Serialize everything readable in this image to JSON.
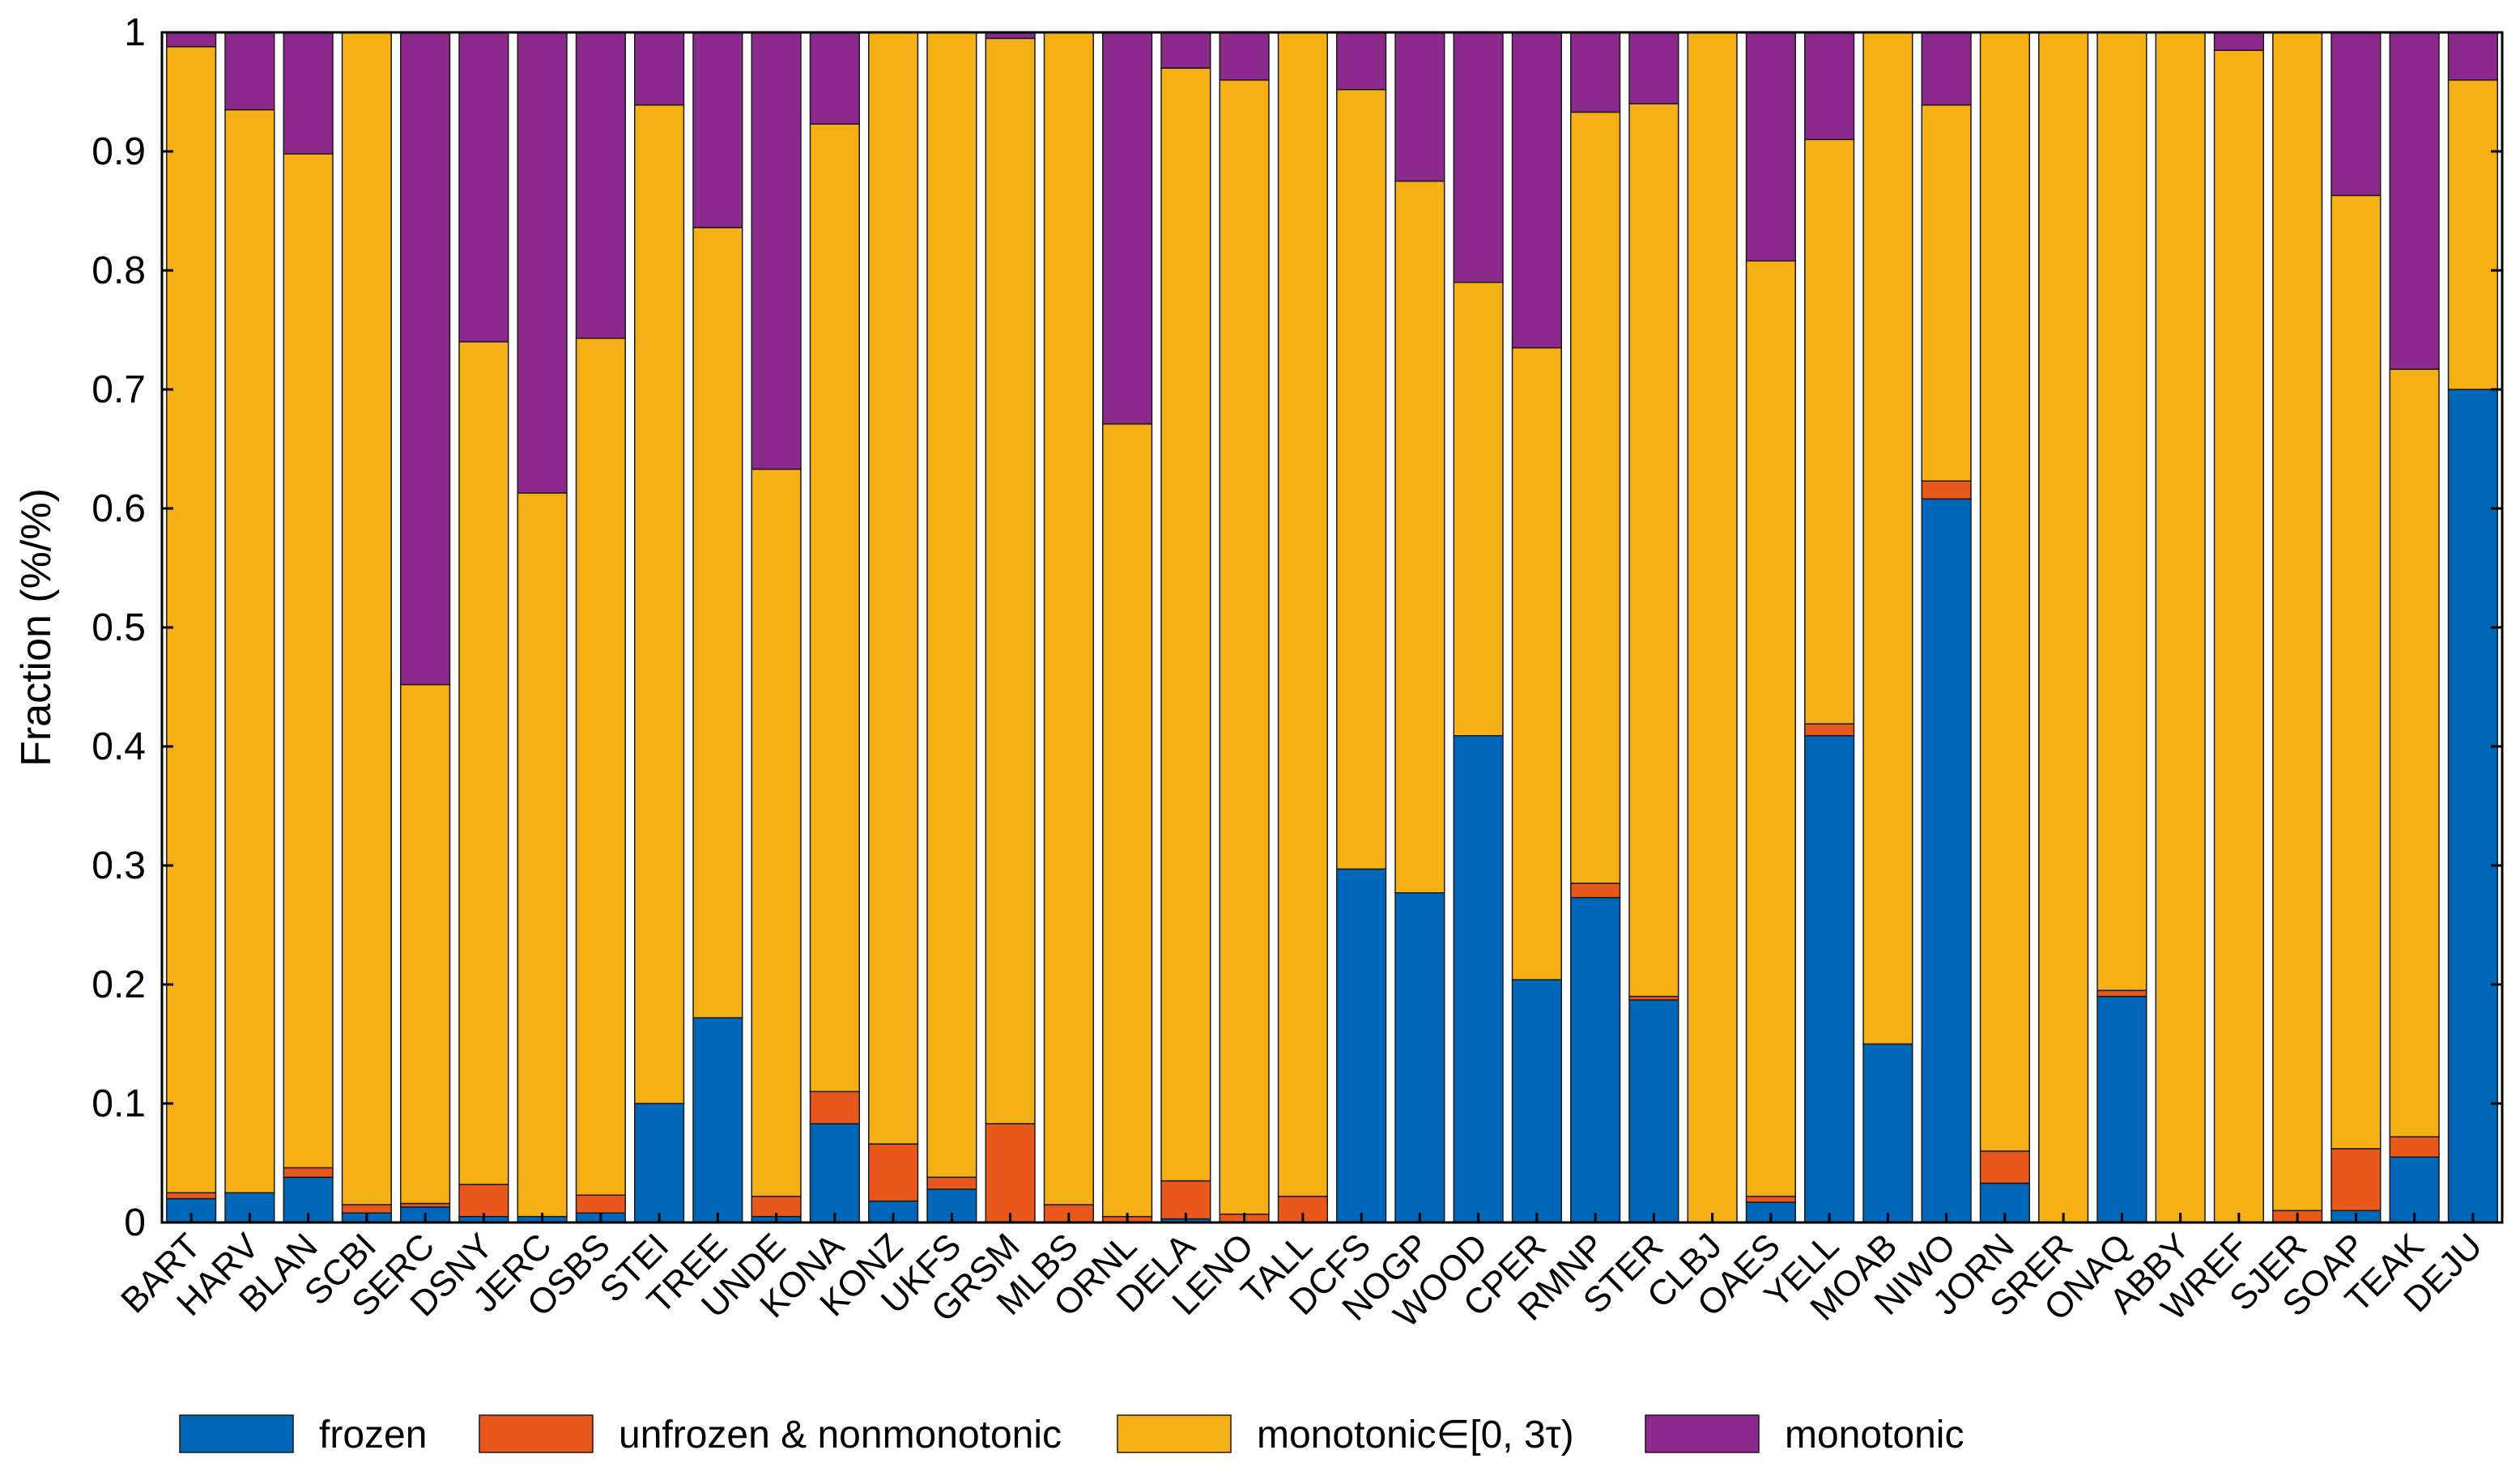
{
  "chart_data": {
    "type": "bar",
    "stacked": true,
    "title": "",
    "xlabel": "",
    "ylabel": "Fraction (%/%)",
    "ylim": [
      0,
      1
    ],
    "yticks": [
      0,
      0.1,
      0.2,
      0.3,
      0.4,
      0.5,
      0.6,
      0.7,
      0.8,
      0.9,
      1
    ],
    "ytick_labels": [
      "0",
      "0.1",
      "0.2",
      "0.3",
      "0.4",
      "0.5",
      "0.6",
      "0.7",
      "0.8",
      "0.9",
      "1"
    ],
    "legend_position": "bottom",
    "categories": [
      "BART",
      "HARV",
      "BLAN",
      "SCBI",
      "SERC",
      "DSNY",
      "JERC",
      "OSBS",
      "STEI",
      "TREE",
      "UNDE",
      "KONA",
      "KONZ",
      "UKFS",
      "GRSM",
      "MLBS",
      "ORNL",
      "DELA",
      "LENO",
      "TALL",
      "DCFS",
      "NOGP",
      "WOOD",
      "CPER",
      "RMNP",
      "STER",
      "CLBJ",
      "OAES",
      "YELL",
      "MOAB",
      "NIWO",
      "JORN",
      "SRER",
      "ONAQ",
      "ABBY",
      "WREF",
      "SJER",
      "SOAP",
      "TEAK",
      "DEJU"
    ],
    "series": [
      {
        "name": "frozen",
        "color": "#0066b8",
        "values": [
          0.02,
          0.025,
          0.038,
          0.008,
          0.013,
          0.005,
          0.005,
          0.008,
          0.1,
          0.172,
          0.005,
          0.083,
          0.018,
          0.028,
          0.0,
          0.0,
          0.0,
          0.003,
          0.0,
          0.0,
          0.297,
          0.277,
          0.409,
          0.204,
          0.273,
          0.187,
          0.0,
          0.017,
          0.409,
          0.15,
          0.608,
          0.033,
          0.0,
          0.19,
          0.0,
          0.0,
          0.0,
          0.01,
          0.055,
          0.7
        ]
      },
      {
        "name": "unfrozen & nonmonotonic",
        "color": "#e8571b",
        "values": [
          0.005,
          0.0,
          0.008,
          0.007,
          0.003,
          0.027,
          0.0,
          0.015,
          0.0,
          0.0,
          0.017,
          0.027,
          0.048,
          0.01,
          0.083,
          0.015,
          0.005,
          0.032,
          0.007,
          0.022,
          0.0,
          0.0,
          0.0,
          0.0,
          0.012,
          0.003,
          0.0,
          0.005,
          0.01,
          0.0,
          0.015,
          0.027,
          0.0,
          0.005,
          0.0,
          0.0,
          0.01,
          0.052,
          0.017,
          0.0
        ]
      },
      {
        "name": "monotonic∈[0, 3τ)",
        "color": "#f5b015",
        "values": [
          0.963,
          0.91,
          0.852,
          0.985,
          0.436,
          0.708,
          0.608,
          0.72,
          0.839,
          0.664,
          0.611,
          0.813,
          0.934,
          0.962,
          0.912,
          0.985,
          0.666,
          0.935,
          0.953,
          0.978,
          0.655,
          0.598,
          0.381,
          0.531,
          0.648,
          0.75,
          1.0,
          0.786,
          0.491,
          0.85,
          0.316,
          0.94,
          1.0,
          0.805,
          1.0,
          0.985,
          0.99,
          0.801,
          0.645,
          0.26
        ]
      },
      {
        "name": "monotonic",
        "color": "#8b2a8c",
        "values": [
          0.012,
          0.065,
          0.102,
          0.0,
          0.548,
          0.26,
          0.387,
          0.257,
          0.061,
          0.164,
          0.367,
          0.077,
          0.0,
          0.0,
          0.005,
          0.0,
          0.329,
          0.03,
          0.04,
          0.0,
          0.048,
          0.125,
          0.21,
          0.265,
          0.067,
          0.06,
          0.0,
          0.192,
          0.09,
          0.0,
          0.061,
          0.0,
          0.0,
          0.0,
          0.0,
          0.015,
          0.0,
          0.137,
          0.283,
          0.04
        ]
      }
    ]
  }
}
